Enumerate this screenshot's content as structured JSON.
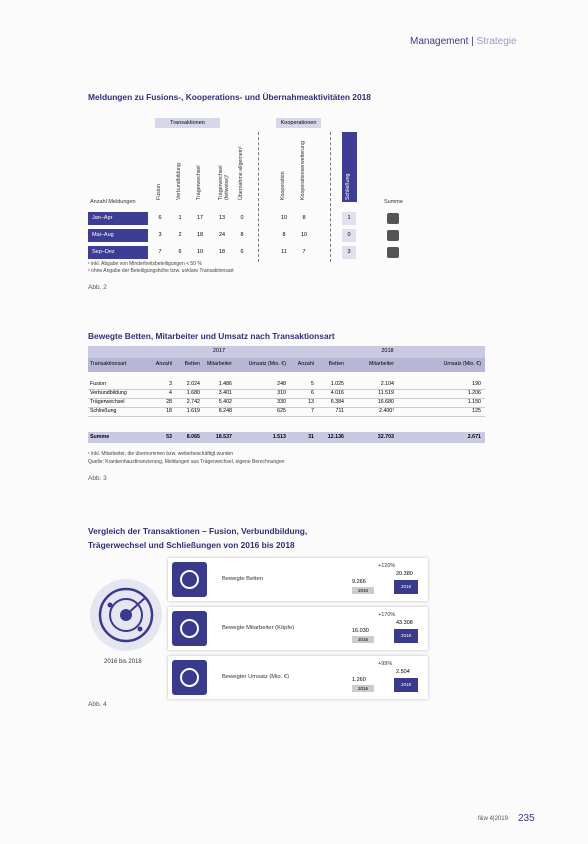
{
  "header": {
    "section": "Management",
    "subsection": "Strategie"
  },
  "figure2": {
    "title": "Meldungen zu Fusions-, Kooperations- und Übernahmeaktivitäten 2018",
    "group_labels": [
      "Transaktionen",
      "Kooperationen"
    ],
    "columns": [
      "Fusion",
      "Verbundbildung",
      "Trägerwechsel",
      "Trägerwechsel (teilweise)¹",
      "Übernahme allgemein²",
      "Kooperation",
      "Kooperationserweiterung",
      "Schließung"
    ],
    "row_header": "Anzahl Meldungen",
    "sum_header": "Summe",
    "rows": [
      {
        "label": "Jan–Apr",
        "values": [
          "6",
          "1",
          "17",
          "13",
          "0",
          "10",
          "8",
          "1"
        ]
      },
      {
        "label": "Mai–Aug",
        "values": [
          "3",
          "2",
          "18",
          "24",
          "8",
          "8",
          "10",
          "0"
        ]
      },
      {
        "label": "Sep–Dez",
        "values": [
          "7",
          "6",
          "10",
          "18",
          "6",
          "11",
          "7",
          "3"
        ]
      }
    ],
    "notes": [
      "¹ inkl. Abgabe von Minderheitsbeteiligungen < 50 %",
      "² ohne Angabe der Beteiligungshöhe bzw. unklare Transaktionsart"
    ],
    "caption": "Abb. 2"
  },
  "figure3": {
    "title": "Bewegte Betten, Mitarbeiter und Umsatz nach Transaktionsart",
    "years": [
      "2017",
      "2018"
    ],
    "columns": [
      "Transaktionsart",
      "Anzahl",
      "Betten",
      "Mitarbeiter",
      "Umsatz (Mio. €)",
      "Anzahl",
      "Betten",
      "Mitarbeiter",
      "Umsatz (Mio. €)"
    ],
    "rows": [
      [
        "Fusion",
        "3",
        "2.024",
        "1.486",
        "248",
        "5",
        "1.025",
        "2.104",
        "190"
      ],
      [
        "Verbundbildung",
        "4",
        "1.680",
        "3.401",
        "310",
        "6",
        "4.016",
        "11.519",
        "1.206"
      ],
      [
        "Trägerwechsel",
        "28",
        "2.742",
        "5.402",
        "330",
        "13",
        "6.384",
        "16.680",
        "1.150"
      ],
      [
        "Schließung",
        "18",
        "1.619",
        "8.248",
        "625",
        "7",
        "711",
        "2.400¹",
        "125"
      ]
    ],
    "total": [
      "Summe",
      "53",
      "8.065",
      "18.537",
      "1.513",
      "31",
      "12.136",
      "32.703",
      "2.671"
    ],
    "notes": [
      "¹ inkl. Mitarbeiter, die übernommen bzw. weiterbeschäftigt wurden",
      "Quelle: Krankenhausfinanzierung, Meldungen aus Trägerwechsel, eigene Berechnungen"
    ],
    "caption": "Abb. 3"
  },
  "figure4": {
    "title_lines": [
      "Vergleich der Transaktionen – Fusion, Verbundbildung,",
      "Trägerwechsel und Schließungen von 2016 bis 2018"
    ],
    "period": "2016 bis 2018",
    "year_labels": [
      "2016",
      "2018"
    ],
    "cards": [
      {
        "label": "Bewegte Betten",
        "change": "+120%",
        "value_2016": "9.266",
        "value_2018": "20.380"
      },
      {
        "label": "Bewegte Mitarbeiter (Köpfe)",
        "change": "+170%",
        "value_2016": "16.030",
        "value_2018": "43.308"
      },
      {
        "label": "Bewegter Umsatz (Mio. €)",
        "change": "+99%",
        "value_2016": "1.260",
        "value_2018": "2.504"
      }
    ],
    "caption": "Abb. 4"
  },
  "footer": {
    "publication": "f&w 4|2019",
    "page": "235"
  }
}
